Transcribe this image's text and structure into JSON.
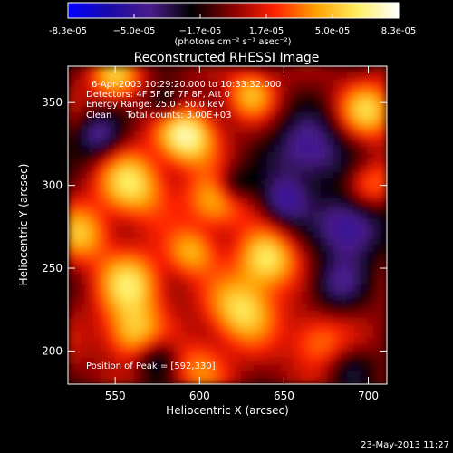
{
  "chart_data": {
    "type": "heatmap",
    "colorbar": {
      "tick_labels": [
        "-8.3e-05",
        "−5.0e-05",
        "−1.7e-05",
        "1.7e-05",
        "5.0e-05",
        "8.3e-05"
      ],
      "unit_label": "(photons cm⁻² s⁻¹ asec⁻²)",
      "vmin": -8.3e-05,
      "vmax": 8.3e-05,
      "colormap": [
        "#0000ff",
        "#1a0aa8",
        "#4a1c8a",
        "#000000",
        "#8a0000",
        "#ff2200",
        "#ffa000",
        "#ffee60",
        "#ffffff"
      ]
    },
    "title": "Reconstructed RHESSI Image",
    "annotations": [
      "6-Apr-2003 10:29:20.000 to 10:33:32.000",
      "Detectors: 4F 5F 6F 7F 8F, Att 0",
      "Energy Range: 25.0 - 50.0 keV",
      "Clean     Total counts: 3.00E+03"
    ],
    "peak_label": "Position of Peak = [592,330]",
    "xlabel": "Heliocentric X (arcsec)",
    "ylabel": "Heliocentric Y (arcsec)",
    "xlim": [
      522,
      711
    ],
    "ylim": [
      180,
      372
    ],
    "x_ticks": [
      550,
      600,
      650,
      700
    ],
    "y_ticks": [
      200,
      250,
      300,
      350
    ],
    "peak": [
      592,
      330
    ],
    "grid": false
  },
  "footer": {
    "timestamp": "23-May-2013 11:27"
  }
}
